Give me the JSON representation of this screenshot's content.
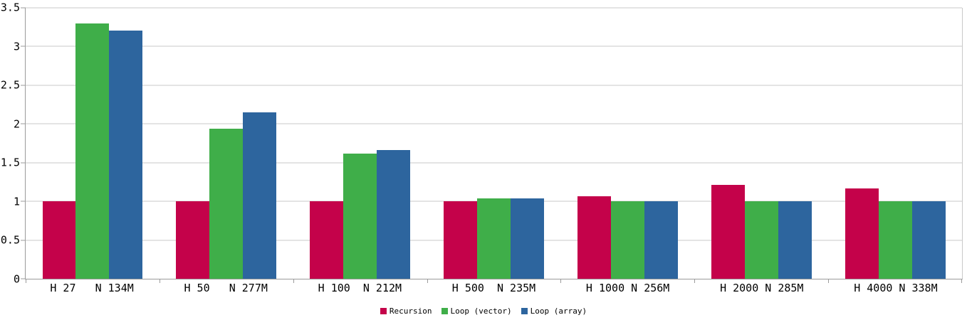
{
  "colors": {
    "grid": "#C9C9C9",
    "axis": "#9B9B9B",
    "text": "#000000",
    "background": "#FFFFFF"
  },
  "chart_data": {
    "type": "bar",
    "title": "",
    "xlabel": "",
    "ylabel": "",
    "categories": [
      "H 27   N 134M",
      "H 50   N 277M",
      "H 100  N 212M",
      "H 500  N 235M",
      "H 1000 N 256M",
      "H 2000 N 285M",
      "H 4000 N 338M"
    ],
    "series": [
      {
        "name": "Recursion",
        "color": "#C4024A",
        "values": [
          1.0,
          1.0,
          1.0,
          1.0,
          1.07,
          1.21,
          1.17
        ]
      },
      {
        "name": "Loop (vector)",
        "color": "#3FAE49",
        "values": [
          3.3,
          1.94,
          1.62,
          1.04,
          1.0,
          1.0,
          1.0
        ]
      },
      {
        "name": "Loop (array)",
        "color": "#2D659E",
        "values": [
          3.21,
          2.15,
          1.66,
          1.04,
          1.0,
          1.0,
          1.0
        ]
      }
    ],
    "ylim": [
      0,
      3.5
    ],
    "ytick_step": 0.5,
    "yticks": [
      "0",
      "0.5",
      "1",
      "1.5",
      "2",
      "2.5",
      "3",
      "3.5"
    ],
    "grid": true,
    "legend_position": "bottom"
  }
}
